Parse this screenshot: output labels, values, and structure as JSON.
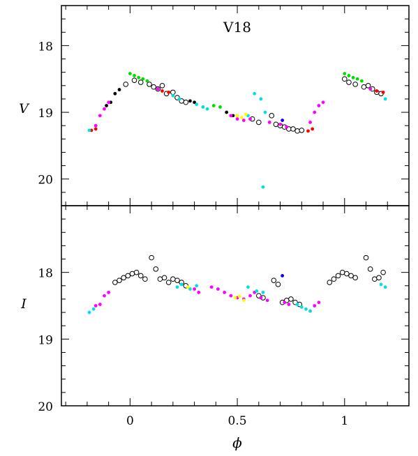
{
  "chart_data": {
    "type": "scatter",
    "title": "V18",
    "xlabel": "ϕ",
    "shared_x": {
      "lim": [
        -0.32,
        1.3
      ],
      "ticks": [
        0,
        0.5,
        1
      ],
      "tick_labels": [
        "0",
        "0.5",
        "1"
      ]
    },
    "panels": [
      {
        "id": "V",
        "ylabel": "V",
        "ylim": [
          20.4,
          17.4
        ],
        "yticks": [
          18,
          19,
          20
        ],
        "ytick_labels": [
          "18",
          "19",
          "20"
        ],
        "series": [
          {
            "color": "#000000",
            "marker": "open",
            "x": [
              0.09,
              0.11,
              0.13,
              0.15,
              0.17,
              0.2,
              0.22,
              0.24,
              0.26,
              0.57,
              0.6,
              0.66,
              0.68,
              0.7,
              0.72,
              0.74,
              0.76,
              0.78,
              0.8,
              -0.02,
              0.02,
              0.05,
              1.0,
              1.02,
              1.05,
              1.09,
              1.11,
              1.13,
              1.15,
              1.17
            ],
            "y": [
              18.58,
              18.62,
              18.65,
              18.6,
              18.72,
              18.7,
              18.78,
              18.83,
              18.85,
              19.1,
              19.15,
              19.05,
              19.18,
              19.2,
              19.22,
              19.25,
              19.25,
              19.28,
              19.27,
              18.58,
              18.52,
              18.55,
              18.5,
              18.55,
              18.58,
              18.62,
              18.6,
              18.65,
              18.7,
              18.72
            ]
          },
          {
            "color": "#000000",
            "marker": "filled",
            "x": [
              -0.11,
              -0.09,
              -0.07,
              -0.05,
              0.28,
              0.3,
              0.45,
              0.48
            ],
            "y": [
              18.9,
              18.85,
              18.72,
              18.66,
              18.83,
              18.85,
              19.0,
              19.05
            ]
          },
          {
            "color": "#00dd00",
            "marker": "filled",
            "x": [
              0.0,
              0.02,
              0.04,
              0.06,
              0.08,
              0.39,
              0.42,
              1.0,
              1.02,
              1.04,
              1.06,
              1.08
            ],
            "y": [
              18.42,
              18.45,
              18.48,
              18.5,
              18.53,
              18.9,
              18.92,
              18.42,
              18.45,
              18.48,
              18.5,
              18.53
            ]
          },
          {
            "color": "#ff0000",
            "marker": "filled",
            "x": [
              -0.18,
              -0.16,
              0.15,
              0.18,
              0.5,
              0.85,
              0.83,
              1.15,
              1.18
            ],
            "y": [
              19.27,
              19.25,
              18.68,
              18.7,
              19.05,
              19.25,
              19.28,
              18.68,
              18.7
            ]
          },
          {
            "color": "#ff00ff",
            "marker": "filled",
            "x": [
              -0.16,
              -0.14,
              -0.12,
              -0.1,
              0.13,
              0.47,
              0.5,
              0.53,
              0.56,
              0.65,
              0.7,
              0.73,
              0.84,
              0.86,
              0.88,
              0.9,
              1.12
            ],
            "y": [
              19.2,
              19.05,
              18.95,
              18.85,
              18.65,
              19.05,
              19.1,
              19.12,
              19.1,
              19.15,
              19.18,
              19.22,
              19.15,
              19.0,
              18.9,
              18.85,
              18.65
            ]
          },
          {
            "color": "#00e0e0",
            "marker": "filled",
            "x": [
              -0.19,
              0.2,
              0.23,
              0.31,
              0.34,
              0.36,
              0.58,
              0.61,
              0.63,
              0.62,
              0.55,
              1.19
            ],
            "y": [
              19.27,
              18.75,
              18.8,
              18.88,
              18.92,
              18.95,
              18.72,
              18.8,
              19.0,
              20.12,
              19.05,
              18.8
            ]
          },
          {
            "color": "#ffff00",
            "marker": "filled",
            "x": [
              0.5,
              0.52,
              0.54
            ],
            "y": [
              19.05,
              19.08,
              19.03
            ]
          },
          {
            "color": "#0000ff",
            "marker": "filled",
            "x": [
              0.71
            ],
            "y": [
              19.12
            ]
          }
        ]
      },
      {
        "id": "I",
        "ylabel": "I",
        "ylim": [
          20,
          17.0
        ],
        "yticks": [
          18,
          19,
          20
        ],
        "ytick_labels": [
          "18",
          "19",
          "20"
        ],
        "series": [
          {
            "color": "#000000",
            "marker": "open",
            "x": [
              -0.07,
              -0.05,
              -0.03,
              -0.01,
              0.01,
              0.03,
              0.05,
              0.07,
              0.1,
              0.12,
              0.14,
              0.16,
              0.18,
              0.2,
              0.22,
              0.24,
              0.26,
              0.6,
              0.62,
              0.67,
              0.69,
              0.71,
              0.73,
              0.75,
              0.77,
              0.79,
              0.93,
              0.95,
              0.97,
              0.99,
              1.01,
              1.03,
              1.05,
              1.1,
              1.12,
              1.14,
              1.16,
              1.18
            ],
            "y": [
              18.15,
              18.12,
              18.08,
              18.05,
              18.02,
              18.0,
              18.05,
              18.1,
              17.78,
              17.95,
              18.1,
              18.08,
              18.15,
              18.1,
              18.12,
              18.15,
              18.2,
              18.35,
              18.38,
              18.12,
              18.18,
              18.45,
              18.42,
              18.4,
              18.45,
              18.48,
              18.15,
              18.1,
              18.05,
              18.0,
              18.02,
              18.05,
              18.08,
              17.78,
              17.95,
              18.1,
              18.08,
              18.0
            ]
          },
          {
            "color": "#ff00ff",
            "marker": "filled",
            "x": [
              -0.16,
              -0.14,
              -0.12,
              -0.1,
              0.3,
              0.32,
              0.38,
              0.41,
              0.44,
              0.47,
              0.5,
              0.53,
              0.56,
              0.58,
              0.61,
              0.64,
              0.72,
              0.74,
              0.84,
              0.86,
              0.88
            ],
            "y": [
              18.5,
              18.48,
              18.35,
              18.3,
              18.25,
              18.3,
              18.22,
              18.25,
              18.3,
              18.35,
              18.38,
              18.4,
              18.35,
              18.3,
              18.38,
              18.42,
              18.45,
              18.48,
              18.58,
              18.5,
              18.45
            ]
          },
          {
            "color": "#00e0e0",
            "marker": "filled",
            "x": [
              -0.19,
              -0.17,
              0.22,
              0.24,
              0.28,
              0.31,
              0.55,
              0.59,
              0.62,
              0.78,
              0.8,
              0.82,
              0.84,
              1.17,
              1.19
            ],
            "y": [
              18.6,
              18.55,
              18.22,
              18.18,
              18.25,
              18.2,
              18.22,
              18.28,
              18.3,
              18.48,
              18.52,
              18.55,
              18.58,
              18.18,
              18.22
            ]
          },
          {
            "color": "#ffff00",
            "marker": "filled",
            "x": [
              0.27,
              0.49,
              0.51,
              0.53
            ],
            "y": [
              18.22,
              18.38,
              18.36,
              18.42
            ]
          },
          {
            "color": "#0000ff",
            "marker": "filled",
            "x": [
              0.71
            ],
            "y": [
              18.05
            ]
          }
        ]
      }
    ]
  }
}
